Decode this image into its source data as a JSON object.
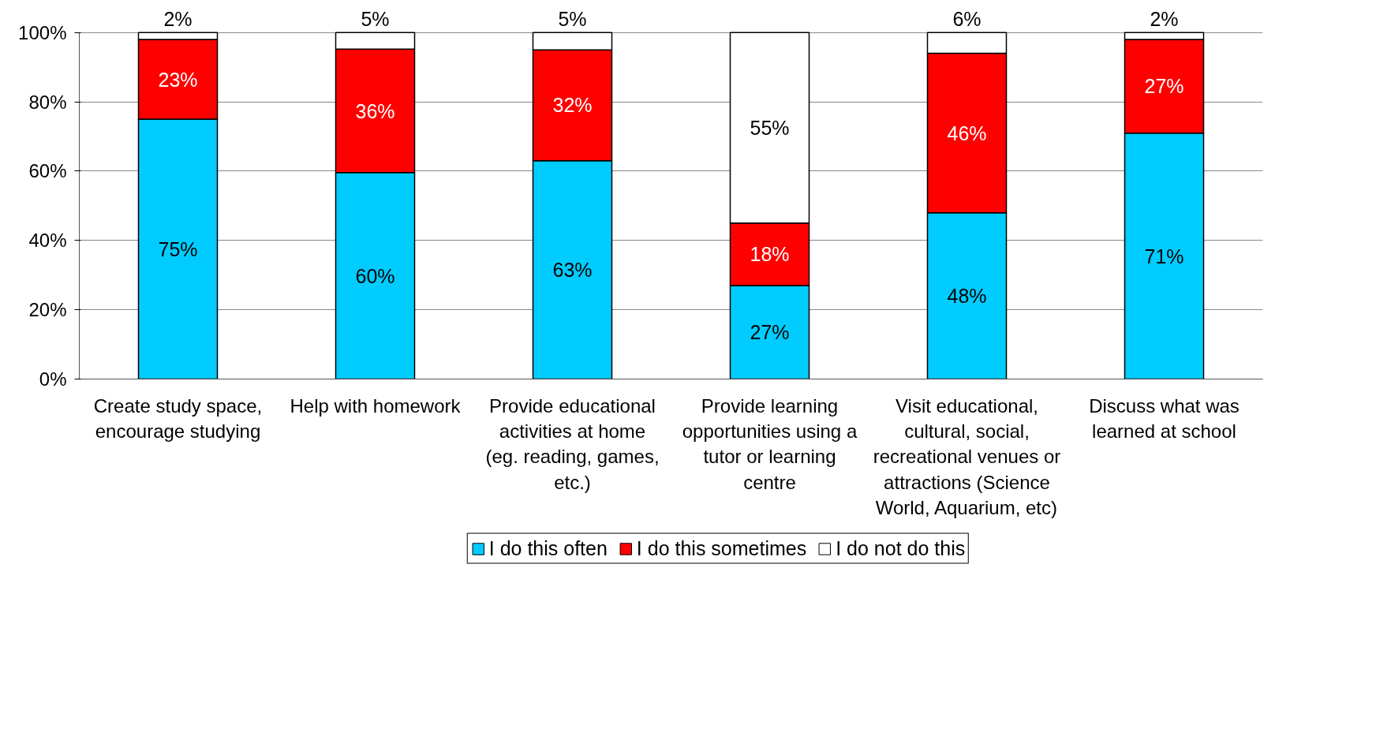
{
  "chart_data": {
    "type": "bar",
    "stacked": true,
    "categories": [
      "Create study space, encourage studying",
      "Help with homework",
      "Provide educational activities at home (eg. reading, games, etc.)",
      "Provide learning opportunities using a tutor or learning centre",
      "Visit educational, cultural, social, recreational venues or attractions (Science World, Aquarium, etc)",
      "Discuss what was learned at school"
    ],
    "series": [
      {
        "name": "I do this often",
        "color": "#00ccff",
        "values": [
          75,
          59.6,
          63,
          27,
          48,
          71
        ],
        "value_labels": [
          "75%",
          "60%",
          "63%",
          "27%",
          "48%",
          "71%"
        ]
      },
      {
        "name": "I do this sometimes",
        "color": "#ff0000",
        "values": [
          23,
          35.6,
          32,
          18,
          46,
          27
        ],
        "value_labels": [
          "23%",
          "36%",
          "32%",
          "18%",
          "46%",
          "27%"
        ]
      },
      {
        "name": "I do not do this",
        "color": "#ffffff",
        "values": [
          2,
          4.8,
          5,
          55,
          6,
          2
        ],
        "value_labels": [
          "2%",
          "5%",
          "5%",
          "55%",
          "6%",
          "2%"
        ]
      }
    ],
    "ylim": [
      0,
      100
    ],
    "yticks": [
      {
        "value": 0,
        "label": "0%"
      },
      {
        "value": 20,
        "label": "20%"
      },
      {
        "value": 40,
        "label": "40%"
      },
      {
        "value": 60,
        "label": "60%"
      },
      {
        "value": 80,
        "label": "80%"
      },
      {
        "value": 100,
        "label": "100%"
      }
    ],
    "grid": "y",
    "legend": "bottom"
  }
}
